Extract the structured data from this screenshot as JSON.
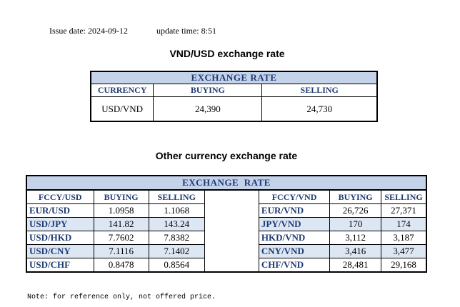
{
  "header": {
    "issue_date_label": "Issue date:",
    "issue_date": "2024-09-12",
    "update_time_label": "update time:",
    "update_time": "8:51"
  },
  "usd_section": {
    "title": "VND/USD exchange rate",
    "table_title": "EXCHANGE RATE",
    "columns": [
      "CURRENCY",
      "BUYING",
      "SELLING"
    ],
    "row": {
      "currency": "USD/VND",
      "buying": "24,390",
      "selling": "24,730"
    }
  },
  "other_section": {
    "title": "Other currency exchange rate",
    "table_title": "EXCHANGE  RATE",
    "left_columns": [
      "FCCY/USD",
      "BUYING",
      "SELLING"
    ],
    "right_columns": [
      "FCCY/VND",
      "BUYING",
      "SELLING"
    ],
    "left_rows": [
      {
        "pair": "EUR/USD",
        "buying": "1.0958",
        "selling": "1.1068"
      },
      {
        "pair": "USD/JPY",
        "buying": "141.82",
        "selling": "143.24"
      },
      {
        "pair": "USD/HKD",
        "buying": "7.7602",
        "selling": "7.8382"
      },
      {
        "pair": "USD/CNY",
        "buying": "7.1116",
        "selling": "7.1402"
      },
      {
        "pair": "USD/CHF",
        "buying": "0.8478",
        "selling": "0.8564"
      }
    ],
    "right_rows": [
      {
        "pair": "EUR/VND",
        "buying": "26,726",
        "selling": "27,371"
      },
      {
        "pair": "JPY/VND",
        "buying": "170",
        "selling": "174"
      },
      {
        "pair": "HKD/VND",
        "buying": "3,112",
        "selling": "3,187"
      },
      {
        "pair": "CNY/VND",
        "buying": "3,416",
        "selling": "3,477"
      },
      {
        "pair": "CHF/VND",
        "buying": "28,481",
        "selling": "29,168"
      }
    ]
  },
  "footer": {
    "note": "Note: for reference only, not offered price."
  },
  "colors": {
    "header_fill": "#c5d3ea",
    "header_text": "#1f3b73",
    "alt_row_fill": "#dde6f3"
  }
}
